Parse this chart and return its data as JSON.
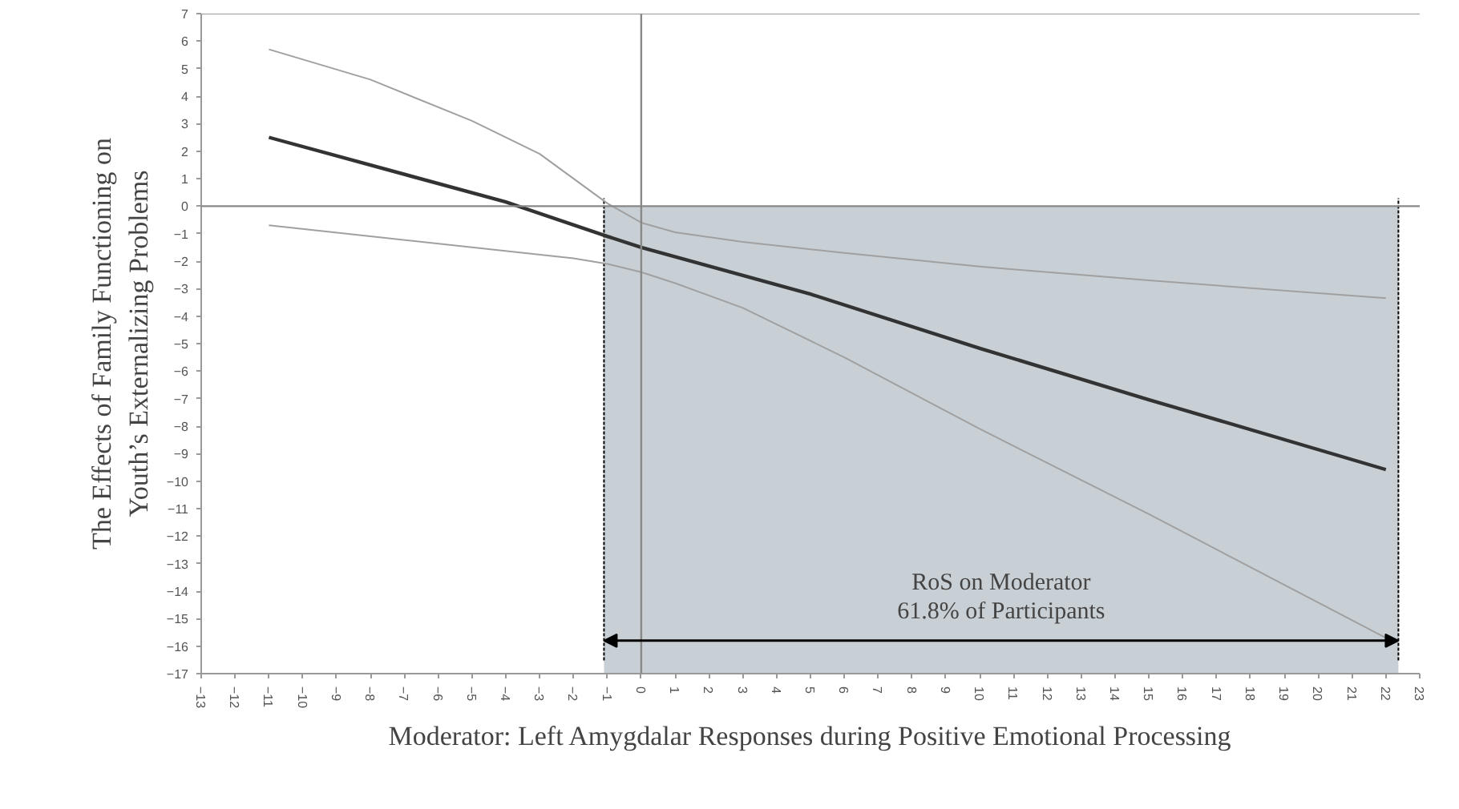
{
  "chart_data": {
    "type": "line",
    "xlabel": "Moderator: Left Amygdalar Responses during Positive Emotional Processing",
    "ylabel": "The Effects of Family Functioning on\nYouth’s Externalizing Problems",
    "xlim": [
      -13,
      23
    ],
    "xticks": [
      -13,
      -12,
      -11,
      -10,
      -9,
      -8,
      -7,
      -6,
      -5,
      -4,
      -3,
      -2,
      -1,
      0,
      1,
      2,
      3,
      4,
      5,
      6,
      7,
      8,
      9,
      10,
      11,
      12,
      13,
      14,
      15,
      16,
      17,
      18,
      19,
      20,
      21,
      22,
      23
    ],
    "ylim": [
      -17,
      7
    ],
    "yticks": [
      -17,
      -16,
      -15,
      -14,
      -13,
      -12,
      -11,
      -10,
      -9,
      -8,
      -7,
      -6,
      -5,
      -4,
      -3,
      -2,
      -1,
      0,
      1,
      2,
      3,
      4,
      5,
      6,
      7
    ],
    "series": [
      {
        "color": "#333333",
        "x": [
          -11,
          -4,
          -1,
          0,
          5,
          10,
          15,
          22
        ],
        "values": [
          2.5,
          0.15,
          -1.1,
          -1.5,
          -3.2,
          -5.17,
          -7.04,
          -9.58
        ]
      },
      {
        "color": "#a0a0a0",
        "x": [
          -11,
          -8,
          -5,
          -3,
          -1,
          0,
          1,
          3,
          6,
          10,
          15,
          22
        ],
        "values": [
          5.7,
          4.6,
          3.1,
          1.9,
          0.1,
          -0.6,
          -0.95,
          -1.3,
          -1.7,
          -2.2,
          -2.7,
          -3.35
        ]
      },
      {
        "color": "#a0a0a0",
        "x": [
          -11,
          -8,
          -5,
          -2,
          -1,
          0,
          1,
          3,
          6,
          10,
          15,
          22
        ],
        "values": [
          -0.7,
          -1.1,
          -1.5,
          -1.9,
          -2.1,
          -2.4,
          -2.8,
          -3.7,
          -5.5,
          -8.1,
          -11.2,
          -15.7
        ]
      }
    ],
    "ref_lines": [
      {
        "axis": "x",
        "value": 0,
        "color": "#888888"
      },
      {
        "axis": "y",
        "value": 0,
        "color": "#888888"
      },
      {
        "axis": "x",
        "value": -1.1,
        "color": "#000000",
        "line_style": "dotted"
      },
      {
        "axis": "x",
        "value": 22.37,
        "color": "#000000",
        "line_style": "dotted"
      }
    ],
    "bands": [
      {
        "axis": "x",
        "from": -1.1,
        "to": 22.37,
        "color": "#c9d0d5"
      }
    ],
    "annotations": [
      "RoS on Moderator\n61.8% of Participants"
    ],
    "grid": false,
    "marker": "none",
    "line_style": "solid"
  }
}
